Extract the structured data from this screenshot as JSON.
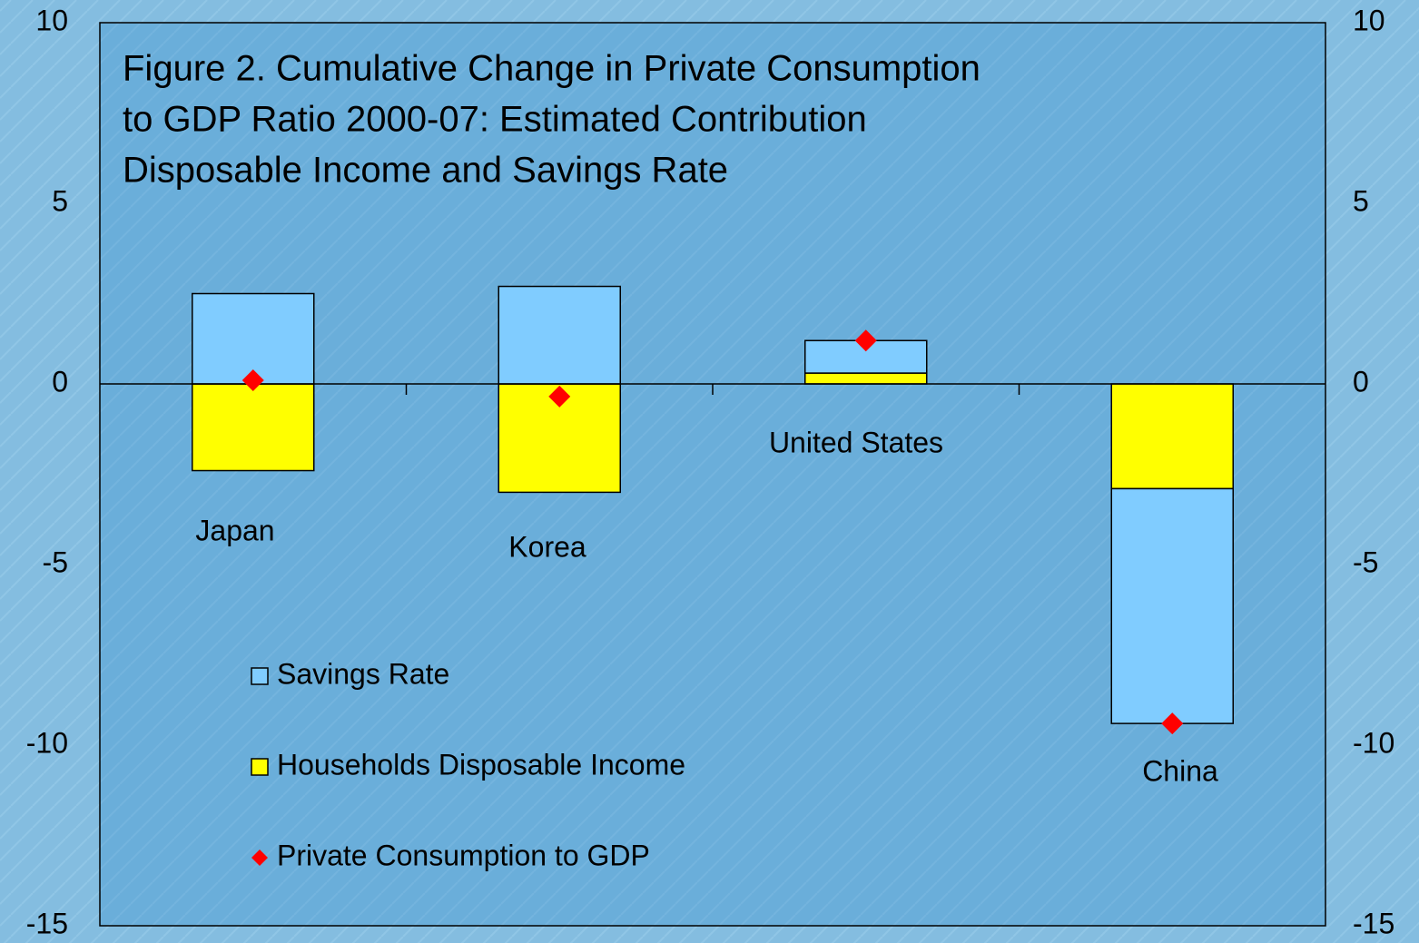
{
  "chart_data": {
    "type": "bar",
    "title": [
      "Figure 2. Cumulative Change in Private Consumption",
      "to GDP Ratio 2000-07: Estimated Contribution",
      "Disposable Income and Savings Rate"
    ],
    "categories": [
      "Japan",
      "Korea",
      "United States",
      "China"
    ],
    "series": [
      {
        "name": "Savings Rate",
        "type": "bar",
        "color": "#80ccff",
        "values": [
          2.5,
          2.7,
          0.9,
          -6.5
        ]
      },
      {
        "name": "Households Disposable Income",
        "type": "bar",
        "color": "#ffff00",
        "values": [
          -2.4,
          -3.0,
          0.3,
          -2.9
        ]
      },
      {
        "name": "Private Consumption to GDP",
        "type": "scatter",
        "color": "#ff0000",
        "values": [
          0.1,
          -0.35,
          1.2,
          -9.4
        ]
      }
    ],
    "stacked": true,
    "ylim": [
      -15,
      10
    ],
    "yticks": [
      -15,
      -10,
      -5,
      0,
      5,
      10
    ],
    "y2lim": [
      -15,
      10
    ],
    "y2ticks": [
      -15,
      -10,
      -5,
      0,
      5,
      10
    ]
  }
}
